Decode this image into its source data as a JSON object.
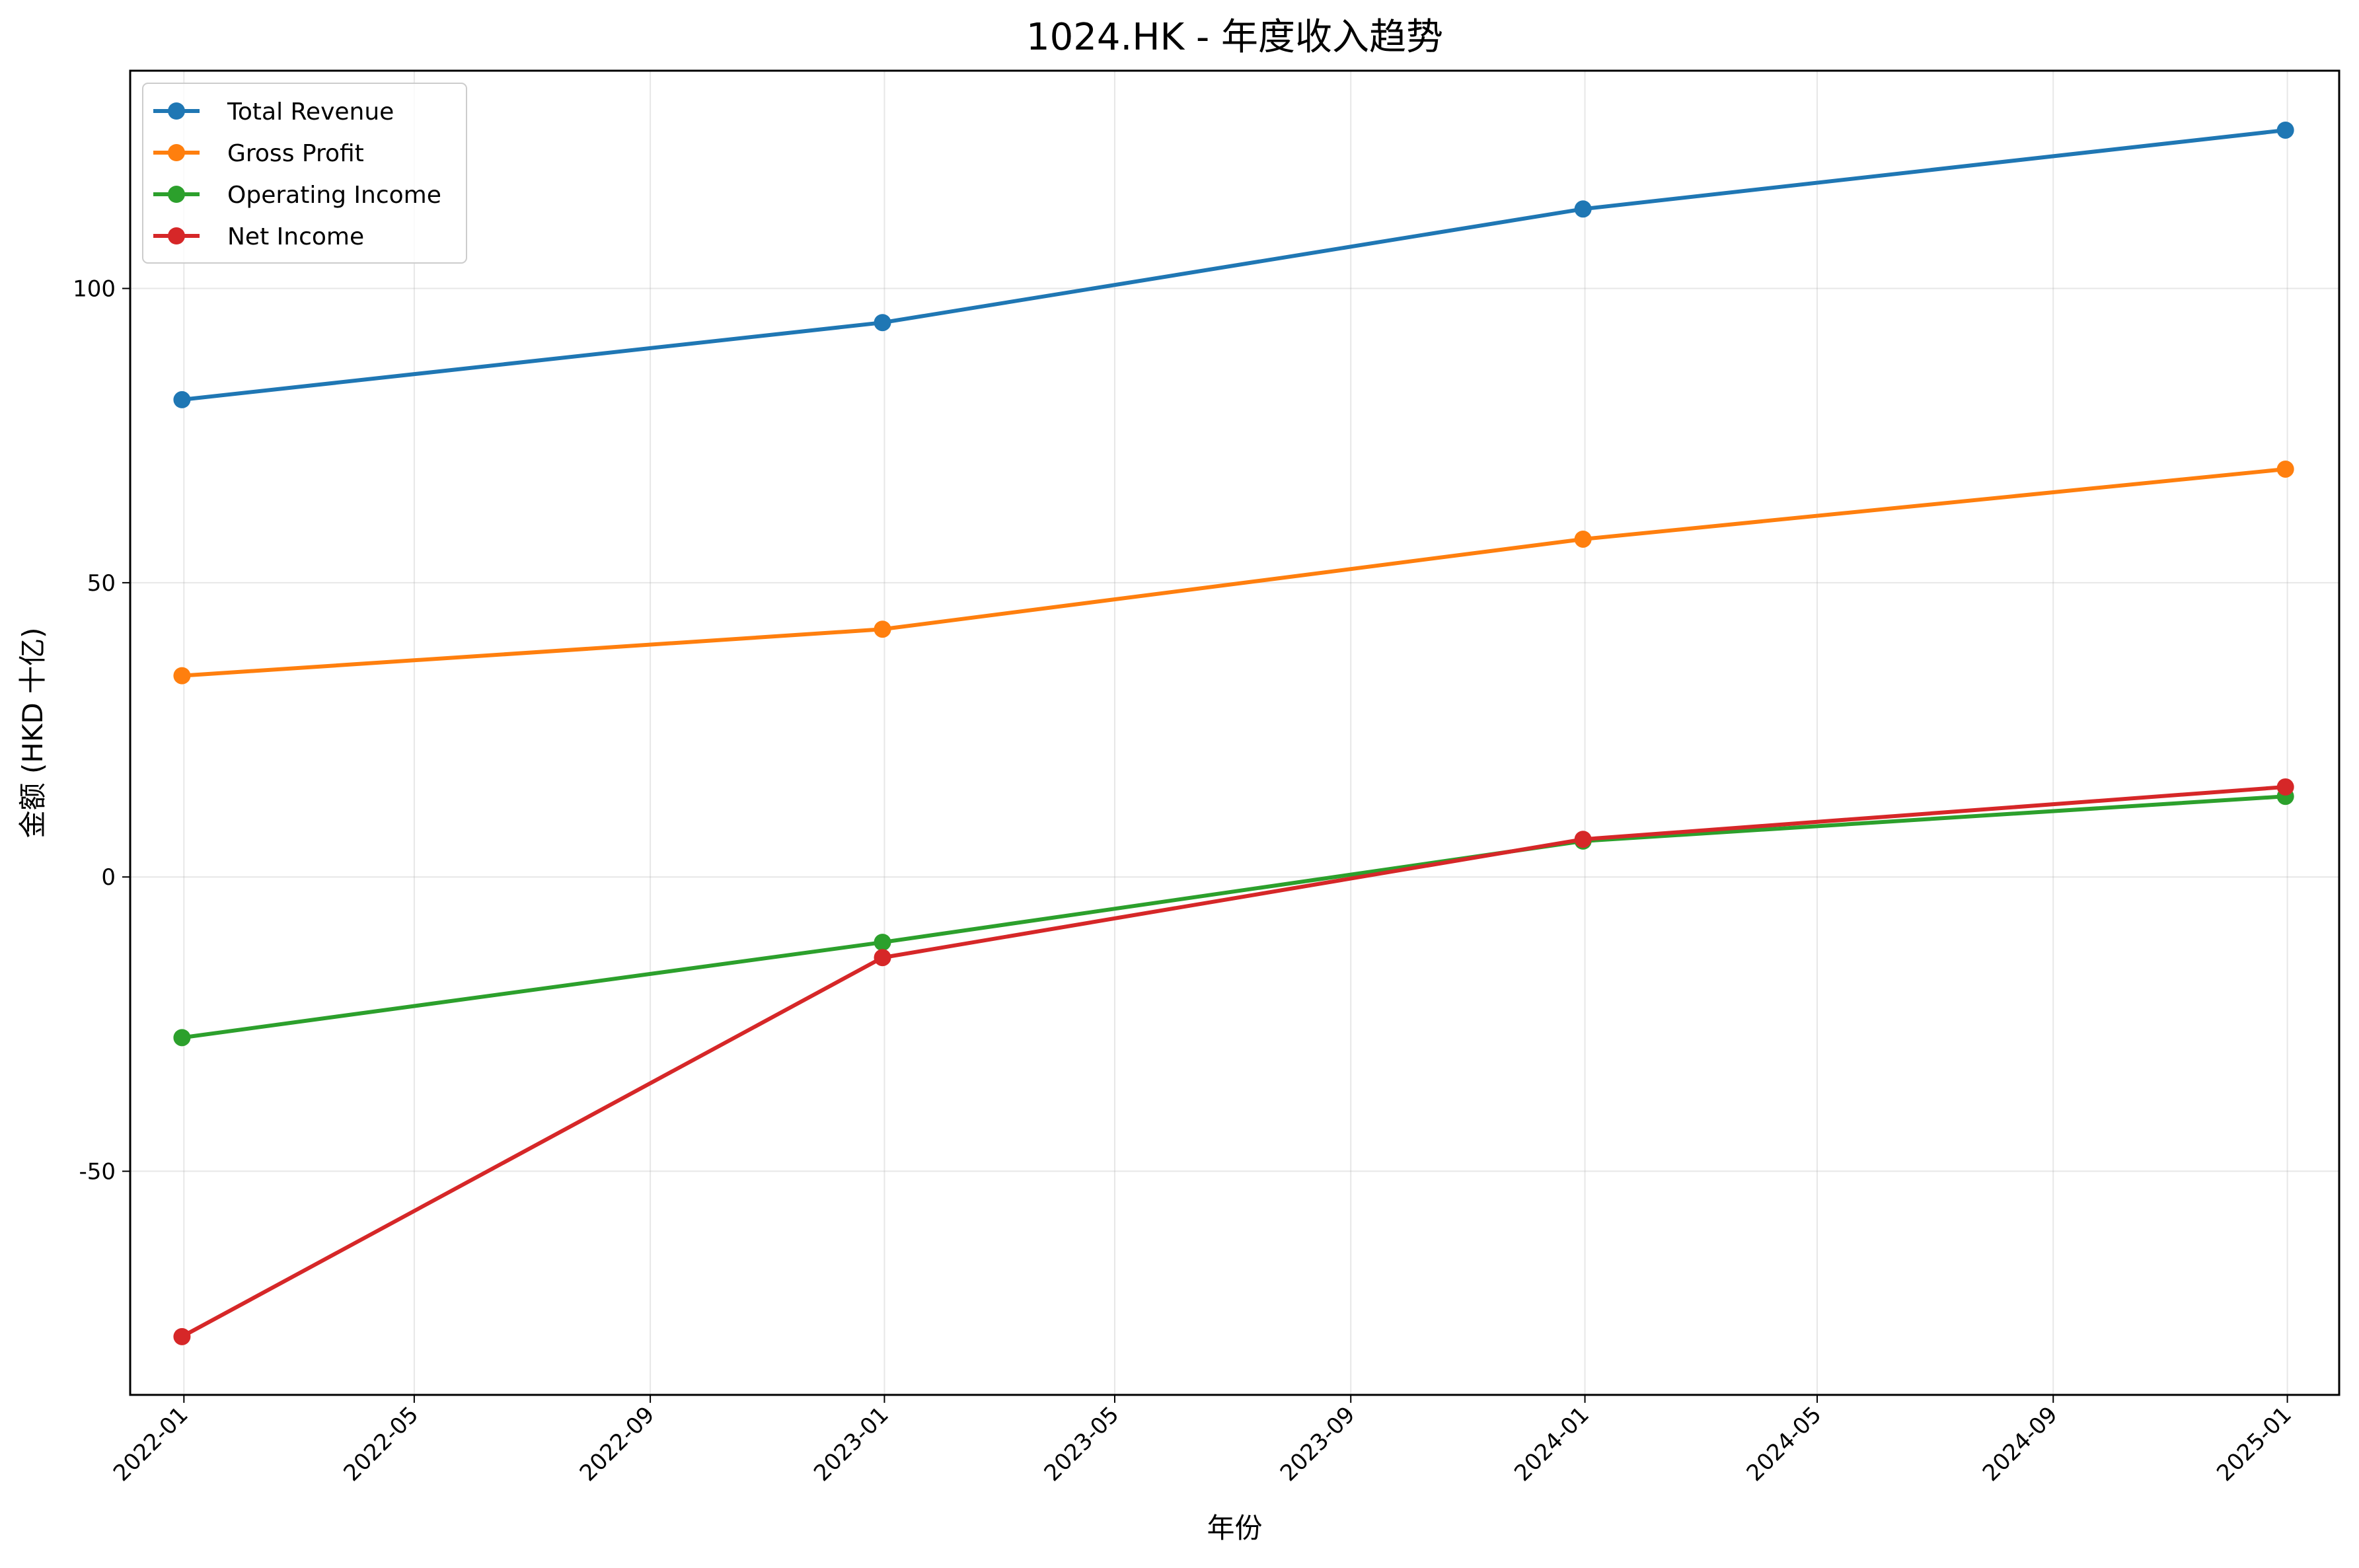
{
  "chart_data": {
    "type": "line",
    "title": "1024.HK - 年度收入趋势",
    "xlabel": "年份",
    "ylabel": "金额 (HKD 十亿)",
    "x": [
      "2021-12-31",
      "2022-12-31",
      "2023-12-31",
      "2024-12-31"
    ],
    "x_tick_labels": [
      "2022-01",
      "2022-05",
      "2022-09",
      "2023-01",
      "2023-05",
      "2023-09",
      "2024-01",
      "2024-05",
      "2024-09",
      "2025-01"
    ],
    "y_tick_values": [
      -50,
      0,
      50,
      100
    ],
    "y_tick_labels": [
      "-50",
      "0",
      "50",
      "100"
    ],
    "xlim": [
      "2021-12-04",
      "2025-01-28"
    ],
    "ylim": [
      -88,
      137
    ],
    "grid": true,
    "legend_position": "top-left",
    "series": [
      {
        "name": "Total Revenue",
        "color": "#1f77b4",
        "values": [
          81.1,
          94.2,
          113.5,
          126.9
        ]
      },
      {
        "name": "Gross Profit",
        "color": "#ff7f0e",
        "values": [
          34.2,
          42.1,
          57.4,
          69.3
        ]
      },
      {
        "name": "Operating Income",
        "color": "#2ca02c",
        "values": [
          -27.3,
          -11.1,
          6.1,
          13.7
        ]
      },
      {
        "name": "Net Income",
        "color": "#d62728",
        "values": [
          -78.1,
          -13.7,
          6.4,
          15.3
        ]
      }
    ]
  }
}
